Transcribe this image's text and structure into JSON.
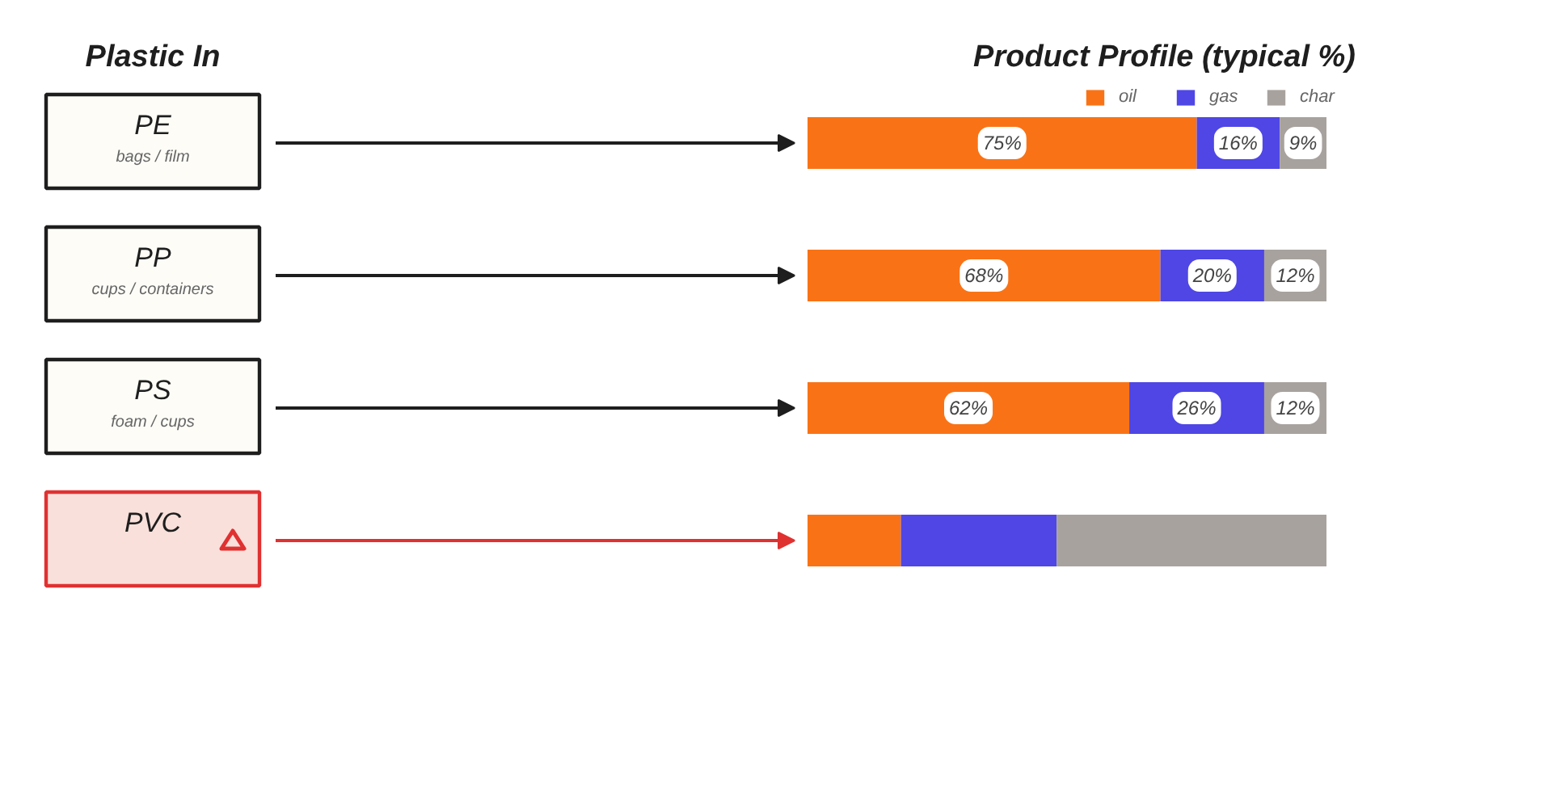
{
  "chart_data": {
    "type": "bar",
    "orientation": "horizontal",
    "stacked": true,
    "title": "Product Profile (typical %)",
    "ylabel": "Plastic In",
    "categories": [
      "PE",
      "PP",
      "PS",
      "PVC"
    ],
    "annotations": [
      "bags / film",
      "cups / containers",
      "foam / cups"
    ],
    "colors": [
      "#1e1e1e",
      "#1e1e1e",
      "#1e1e1e",
      "#e03131"
    ],
    "series": [
      {
        "name": "oil",
        "color": "#f97316",
        "values": [
          75,
          68,
          62,
          18
        ],
        "value_labels": [
          "75%",
          "68%",
          "62%",
          null
        ]
      },
      {
        "name": "gas",
        "color": "#4f46e5",
        "values": [
          16,
          20,
          26,
          30
        ],
        "value_labels": [
          "16%",
          "20%",
          "26%",
          null
        ]
      },
      {
        "name": "char",
        "color": "#a8a29e",
        "values": [
          9,
          12,
          12,
          52
        ],
        "value_labels": [
          "9%",
          "12%",
          "12%",
          null
        ]
      }
    ],
    "xlim": [
      0,
      100
    ],
    "tick_labels": "y",
    "legend": "top right"
  }
}
